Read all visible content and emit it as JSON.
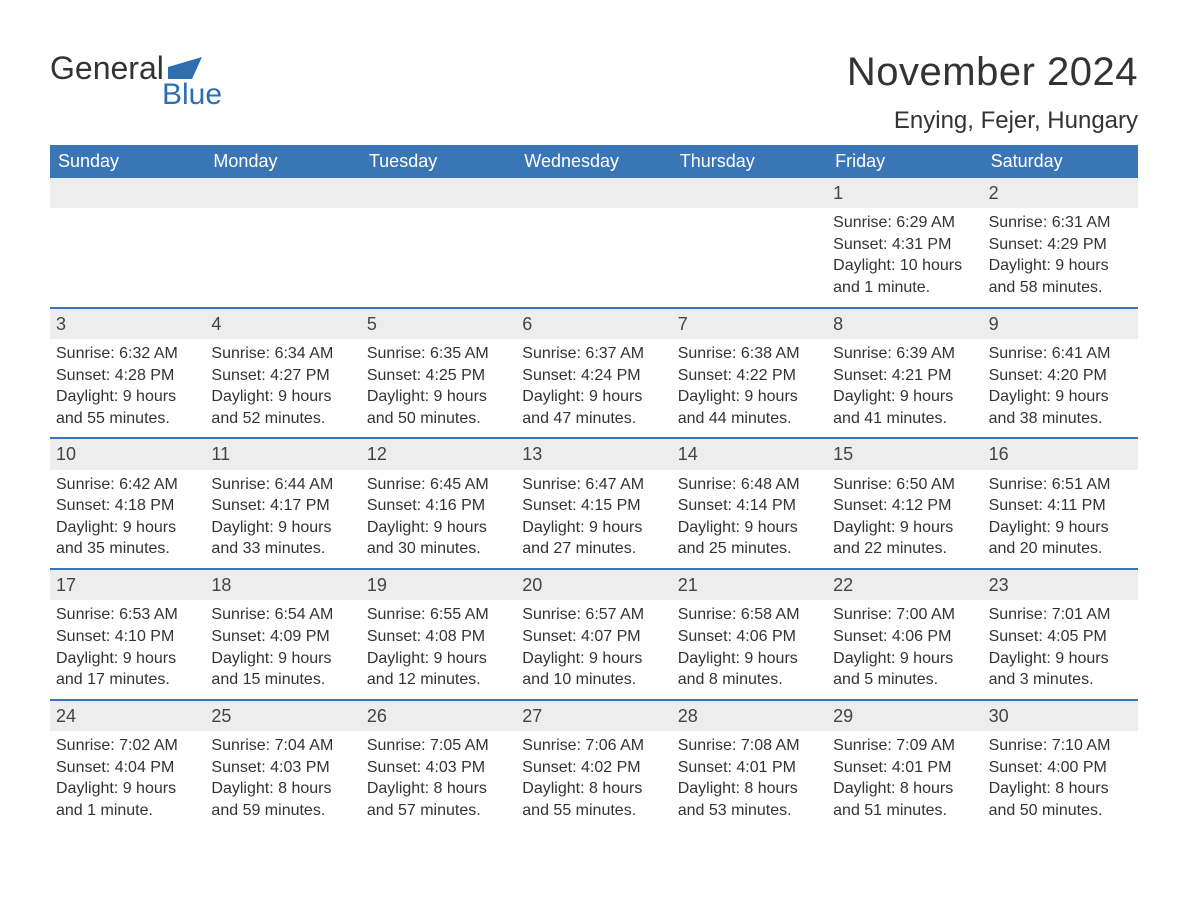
{
  "logo": {
    "text1": "General",
    "text2": "Blue"
  },
  "title": "November 2024",
  "location": "Enying, Fejer, Hungary",
  "colors": {
    "header_bg": "#3a76b5",
    "header_text": "#ffffff",
    "cell_bar_bg": "#ededed",
    "rule": "#3a76b5",
    "text": "#333333",
    "logo_blue": "#2f6fb0"
  },
  "day_names": [
    "Sunday",
    "Monday",
    "Tuesday",
    "Wednesday",
    "Thursday",
    "Friday",
    "Saturday"
  ],
  "weeks": [
    [
      {
        "empty": true
      },
      {
        "empty": true
      },
      {
        "empty": true
      },
      {
        "empty": true
      },
      {
        "empty": true
      },
      {
        "num": "1",
        "sunrise": "Sunrise: 6:29 AM",
        "sunset": "Sunset: 4:31 PM",
        "daylight": "Daylight: 10 hours and 1 minute."
      },
      {
        "num": "2",
        "sunrise": "Sunrise: 6:31 AM",
        "sunset": "Sunset: 4:29 PM",
        "daylight": "Daylight: 9 hours and 58 minutes."
      }
    ],
    [
      {
        "num": "3",
        "sunrise": "Sunrise: 6:32 AM",
        "sunset": "Sunset: 4:28 PM",
        "daylight": "Daylight: 9 hours and 55 minutes."
      },
      {
        "num": "4",
        "sunrise": "Sunrise: 6:34 AM",
        "sunset": "Sunset: 4:27 PM",
        "daylight": "Daylight: 9 hours and 52 minutes."
      },
      {
        "num": "5",
        "sunrise": "Sunrise: 6:35 AM",
        "sunset": "Sunset: 4:25 PM",
        "daylight": "Daylight: 9 hours and 50 minutes."
      },
      {
        "num": "6",
        "sunrise": "Sunrise: 6:37 AM",
        "sunset": "Sunset: 4:24 PM",
        "daylight": "Daylight: 9 hours and 47 minutes."
      },
      {
        "num": "7",
        "sunrise": "Sunrise: 6:38 AM",
        "sunset": "Sunset: 4:22 PM",
        "daylight": "Daylight: 9 hours and 44 minutes."
      },
      {
        "num": "8",
        "sunrise": "Sunrise: 6:39 AM",
        "sunset": "Sunset: 4:21 PM",
        "daylight": "Daylight: 9 hours and 41 minutes."
      },
      {
        "num": "9",
        "sunrise": "Sunrise: 6:41 AM",
        "sunset": "Sunset: 4:20 PM",
        "daylight": "Daylight: 9 hours and 38 minutes."
      }
    ],
    [
      {
        "num": "10",
        "sunrise": "Sunrise: 6:42 AM",
        "sunset": "Sunset: 4:18 PM",
        "daylight": "Daylight: 9 hours and 35 minutes."
      },
      {
        "num": "11",
        "sunrise": "Sunrise: 6:44 AM",
        "sunset": "Sunset: 4:17 PM",
        "daylight": "Daylight: 9 hours and 33 minutes."
      },
      {
        "num": "12",
        "sunrise": "Sunrise: 6:45 AM",
        "sunset": "Sunset: 4:16 PM",
        "daylight": "Daylight: 9 hours and 30 minutes."
      },
      {
        "num": "13",
        "sunrise": "Sunrise: 6:47 AM",
        "sunset": "Sunset: 4:15 PM",
        "daylight": "Daylight: 9 hours and 27 minutes."
      },
      {
        "num": "14",
        "sunrise": "Sunrise: 6:48 AM",
        "sunset": "Sunset: 4:14 PM",
        "daylight": "Daylight: 9 hours and 25 minutes."
      },
      {
        "num": "15",
        "sunrise": "Sunrise: 6:50 AM",
        "sunset": "Sunset: 4:12 PM",
        "daylight": "Daylight: 9 hours and 22 minutes."
      },
      {
        "num": "16",
        "sunrise": "Sunrise: 6:51 AM",
        "sunset": "Sunset: 4:11 PM",
        "daylight": "Daylight: 9 hours and 20 minutes."
      }
    ],
    [
      {
        "num": "17",
        "sunrise": "Sunrise: 6:53 AM",
        "sunset": "Sunset: 4:10 PM",
        "daylight": "Daylight: 9 hours and 17 minutes."
      },
      {
        "num": "18",
        "sunrise": "Sunrise: 6:54 AM",
        "sunset": "Sunset: 4:09 PM",
        "daylight": "Daylight: 9 hours and 15 minutes."
      },
      {
        "num": "19",
        "sunrise": "Sunrise: 6:55 AM",
        "sunset": "Sunset: 4:08 PM",
        "daylight": "Daylight: 9 hours and 12 minutes."
      },
      {
        "num": "20",
        "sunrise": "Sunrise: 6:57 AM",
        "sunset": "Sunset: 4:07 PM",
        "daylight": "Daylight: 9 hours and 10 minutes."
      },
      {
        "num": "21",
        "sunrise": "Sunrise: 6:58 AM",
        "sunset": "Sunset: 4:06 PM",
        "daylight": "Daylight: 9 hours and 8 minutes."
      },
      {
        "num": "22",
        "sunrise": "Sunrise: 7:00 AM",
        "sunset": "Sunset: 4:06 PM",
        "daylight": "Daylight: 9 hours and 5 minutes."
      },
      {
        "num": "23",
        "sunrise": "Sunrise: 7:01 AM",
        "sunset": "Sunset: 4:05 PM",
        "daylight": "Daylight: 9 hours and 3 minutes."
      }
    ],
    [
      {
        "num": "24",
        "sunrise": "Sunrise: 7:02 AM",
        "sunset": "Sunset: 4:04 PM",
        "daylight": "Daylight: 9 hours and 1 minute."
      },
      {
        "num": "25",
        "sunrise": "Sunrise: 7:04 AM",
        "sunset": "Sunset: 4:03 PM",
        "daylight": "Daylight: 8 hours and 59 minutes."
      },
      {
        "num": "26",
        "sunrise": "Sunrise: 7:05 AM",
        "sunset": "Sunset: 4:03 PM",
        "daylight": "Daylight: 8 hours and 57 minutes."
      },
      {
        "num": "27",
        "sunrise": "Sunrise: 7:06 AM",
        "sunset": "Sunset: 4:02 PM",
        "daylight": "Daylight: 8 hours and 55 minutes."
      },
      {
        "num": "28",
        "sunrise": "Sunrise: 7:08 AM",
        "sunset": "Sunset: 4:01 PM",
        "daylight": "Daylight: 8 hours and 53 minutes."
      },
      {
        "num": "29",
        "sunrise": "Sunrise: 7:09 AM",
        "sunset": "Sunset: 4:01 PM",
        "daylight": "Daylight: 8 hours and 51 minutes."
      },
      {
        "num": "30",
        "sunrise": "Sunrise: 7:10 AM",
        "sunset": "Sunset: 4:00 PM",
        "daylight": "Daylight: 8 hours and 50 minutes."
      }
    ]
  ]
}
